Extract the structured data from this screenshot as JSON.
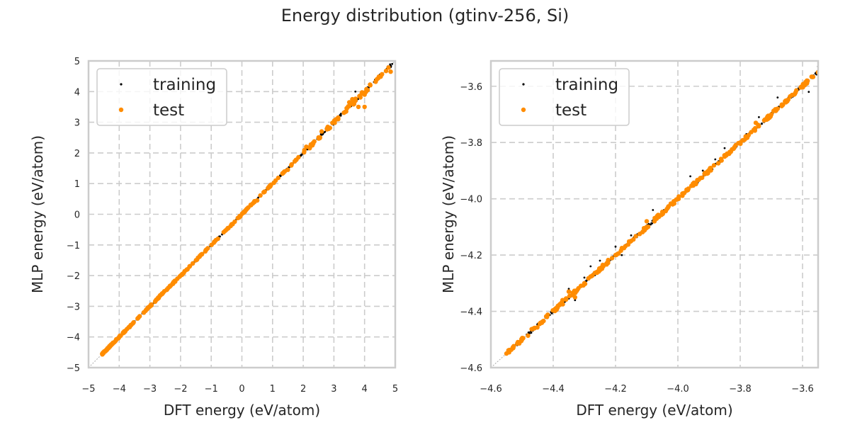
{
  "figure": {
    "title": "Energy distribution (gtinv-256, Si)"
  },
  "colors": {
    "training": "#000000",
    "test": "#ff8c00",
    "grid": "#cccccc",
    "frame": "#cccccc",
    "diagonal": "#aaaaaa"
  },
  "chart_data": [
    {
      "type": "scatter",
      "title": "",
      "xlabel": "DFT energy (eV/atom)",
      "ylabel": "MLP energy (eV/atom)",
      "xlim": [
        -5,
        5
      ],
      "ylim": [
        -5,
        5
      ],
      "xticks": [
        -5,
        -4,
        -3,
        -2,
        -1,
        0,
        1,
        2,
        3,
        4,
        5
      ],
      "yticks": [
        -5,
        -4,
        -3,
        -2,
        -1,
        0,
        1,
        2,
        3,
        4,
        5
      ],
      "xtick_labels": [
        "−5",
        "−4",
        "−3",
        "−2",
        "−1",
        "0",
        "1",
        "2",
        "3",
        "4",
        "5"
      ],
      "ytick_labels": [
        "−5",
        "−4",
        "−3",
        "−2",
        "−1",
        "0",
        "1",
        "2",
        "3",
        "4",
        "5"
      ],
      "grid": true,
      "legend": {
        "position": "top-left",
        "entries": [
          "training",
          "test"
        ]
      },
      "reference_line": "y = x",
      "series": [
        {
          "name": "training",
          "description": "dense cluster along y=x from about -4.55 to 4.9 with small scatter at high energy",
          "x_range": [
            -4.55,
            4.9
          ],
          "points": [
            [
              -4.5,
              -4.5
            ],
            [
              -4.2,
              -4.2
            ],
            [
              -3.8,
              -3.8
            ],
            [
              -3.4,
              -3.4
            ],
            [
              -3.0,
              -3.0
            ],
            [
              -2.6,
              -2.6
            ],
            [
              -2.2,
              -2.2
            ],
            [
              -1.8,
              -1.8
            ],
            [
              -1.5,
              -1.5
            ],
            [
              -1.2,
              -1.22
            ],
            [
              -0.9,
              -0.9
            ],
            [
              -0.6,
              -0.58
            ],
            [
              -0.3,
              -0.3
            ],
            [
              0.0,
              0.0
            ],
            [
              0.3,
              0.32
            ],
            [
              0.6,
              0.6
            ],
            [
              0.9,
              0.92
            ],
            [
              1.3,
              1.3
            ],
            [
              1.6,
              1.6
            ],
            [
              2.0,
              2.02
            ],
            [
              2.2,
              2.2
            ],
            [
              2.5,
              2.48
            ],
            [
              2.8,
              2.82
            ],
            [
              3.1,
              3.1
            ],
            [
              3.3,
              3.32
            ],
            [
              3.6,
              3.62
            ],
            [
              3.7,
              4.0
            ],
            [
              3.9,
              3.92
            ],
            [
              4.2,
              4.2
            ],
            [
              4.5,
              4.5
            ],
            [
              4.8,
              4.82
            ],
            [
              4.9,
              4.9
            ]
          ]
        },
        {
          "name": "test",
          "description": "same range as training, dense below -2, sparser with small deviations above 2",
          "x_range": [
            -4.55,
            4.85
          ],
          "points": [
            [
              -4.55,
              -4.55
            ],
            [
              -4.4,
              -4.4
            ],
            [
              -4.2,
              -4.2
            ],
            [
              -4.0,
              -4.0
            ],
            [
              -3.8,
              -3.8
            ],
            [
              -3.6,
              -3.6
            ],
            [
              -3.4,
              -3.4
            ],
            [
              -3.2,
              -3.2
            ],
            [
              -3.0,
              -3.0
            ],
            [
              -2.8,
              -2.8
            ],
            [
              -2.6,
              -2.6
            ],
            [
              -2.4,
              -2.4
            ],
            [
              -2.2,
              -2.2
            ],
            [
              -2.0,
              -2.0
            ],
            [
              -1.6,
              -1.6
            ],
            [
              -1.3,
              -1.3
            ],
            [
              -0.5,
              -0.5
            ],
            [
              -0.3,
              -0.32
            ],
            [
              0.3,
              0.3
            ],
            [
              0.5,
              0.45
            ],
            [
              0.9,
              0.9
            ],
            [
              1.1,
              1.1
            ],
            [
              1.4,
              1.4
            ],
            [
              1.5,
              1.45
            ],
            [
              2.1,
              2.2
            ],
            [
              2.3,
              2.25
            ],
            [
              2.6,
              2.7
            ],
            [
              2.8,
              2.85
            ],
            [
              3.4,
              3.35
            ],
            [
              3.5,
              3.65
            ],
            [
              3.6,
              3.6
            ],
            [
              3.6,
              3.75
            ],
            [
              3.7,
              3.7
            ],
            [
              3.8,
              3.5
            ],
            [
              4.0,
              3.5
            ],
            [
              4.0,
              3.9
            ],
            [
              4.1,
              4.05
            ],
            [
              4.4,
              4.4
            ],
            [
              4.85,
              4.65
            ]
          ]
        }
      ]
    },
    {
      "type": "scatter",
      "title": "",
      "xlabel": "DFT energy (eV/atom)",
      "ylabel": "MLP energy (eV/atom)",
      "xlim": [
        -4.6,
        -3.55
      ],
      "ylim": [
        -4.6,
        -3.51
      ],
      "xticks": [
        -4.6,
        -4.4,
        -4.2,
        -4.0,
        -3.8,
        -3.6
      ],
      "yticks": [
        -4.6,
        -4.4,
        -4.2,
        -4.0,
        -3.8,
        -3.6
      ],
      "xtick_labels": [
        "−4.6",
        "−4.4",
        "−4.2",
        "−4.0",
        "−3.8",
        "−3.6"
      ],
      "ytick_labels": [
        "−4.6",
        "−4.4",
        "−4.2",
        "−4.0",
        "−3.8",
        "−3.6"
      ],
      "grid": true,
      "legend": {
        "position": "top-left",
        "entries": [
          "training",
          "test"
        ]
      },
      "reference_line": "y = x",
      "series": [
        {
          "name": "training",
          "description": "dense band along y=x from -4.55 to -3.51; visible outliers slightly above the line between -4.35 and -3.85",
          "x_range": [
            -4.55,
            -3.51
          ],
          "points": [
            [
              -4.5,
              -4.5
            ],
            [
              -4.42,
              -4.42
            ],
            [
              -4.35,
              -4.32
            ],
            [
              -4.33,
              -4.36
            ],
            [
              -4.3,
              -4.28
            ],
            [
              -4.28,
              -4.24
            ],
            [
              -4.25,
              -4.22
            ],
            [
              -4.2,
              -4.17
            ],
            [
              -4.18,
              -4.2
            ],
            [
              -4.15,
              -4.13
            ],
            [
              -4.12,
              -4.12
            ],
            [
              -4.08,
              -4.04
            ],
            [
              -4.05,
              -4.06
            ],
            [
              -4.0,
              -4.0
            ],
            [
              -3.96,
              -3.92
            ],
            [
              -3.92,
              -3.9
            ],
            [
              -3.88,
              -3.86
            ],
            [
              -3.85,
              -3.82
            ],
            [
              -3.82,
              -3.82
            ],
            [
              -3.78,
              -3.77
            ],
            [
              -3.74,
              -3.71
            ],
            [
              -3.7,
              -3.7
            ],
            [
              -3.68,
              -3.64
            ],
            [
              -3.64,
              -3.64
            ],
            [
              -3.6,
              -3.6
            ],
            [
              -3.58,
              -3.62
            ],
            [
              -3.55,
              -3.53
            ],
            [
              -3.54,
              -3.58
            ],
            [
              -3.52,
              -3.52
            ]
          ]
        },
        {
          "name": "test",
          "description": "band along y=x, slight spread around -4.35",
          "x_range": [
            -4.55,
            -3.51
          ],
          "points": [
            [
              -4.55,
              -4.55
            ],
            [
              -4.5,
              -4.5
            ],
            [
              -4.46,
              -4.46
            ],
            [
              -4.42,
              -4.42
            ],
            [
              -4.37,
              -4.36
            ],
            [
              -4.35,
              -4.33
            ],
            [
              -4.33,
              -4.35
            ],
            [
              -4.3,
              -4.3
            ],
            [
              -4.25,
              -4.25
            ],
            [
              -4.2,
              -4.2
            ],
            [
              -4.15,
              -4.15
            ],
            [
              -4.1,
              -4.08
            ],
            [
              -4.05,
              -4.05
            ],
            [
              -4.0,
              -4.0
            ],
            [
              -3.95,
              -3.95
            ],
            [
              -3.9,
              -3.9
            ],
            [
              -3.85,
              -3.85
            ],
            [
              -3.8,
              -3.8
            ],
            [
              -3.75,
              -3.73
            ],
            [
              -3.7,
              -3.7
            ],
            [
              -3.65,
              -3.65
            ],
            [
              -3.6,
              -3.6
            ],
            [
              -3.55,
              -3.55
            ],
            [
              -3.52,
              -3.52
            ]
          ]
        }
      ]
    }
  ]
}
